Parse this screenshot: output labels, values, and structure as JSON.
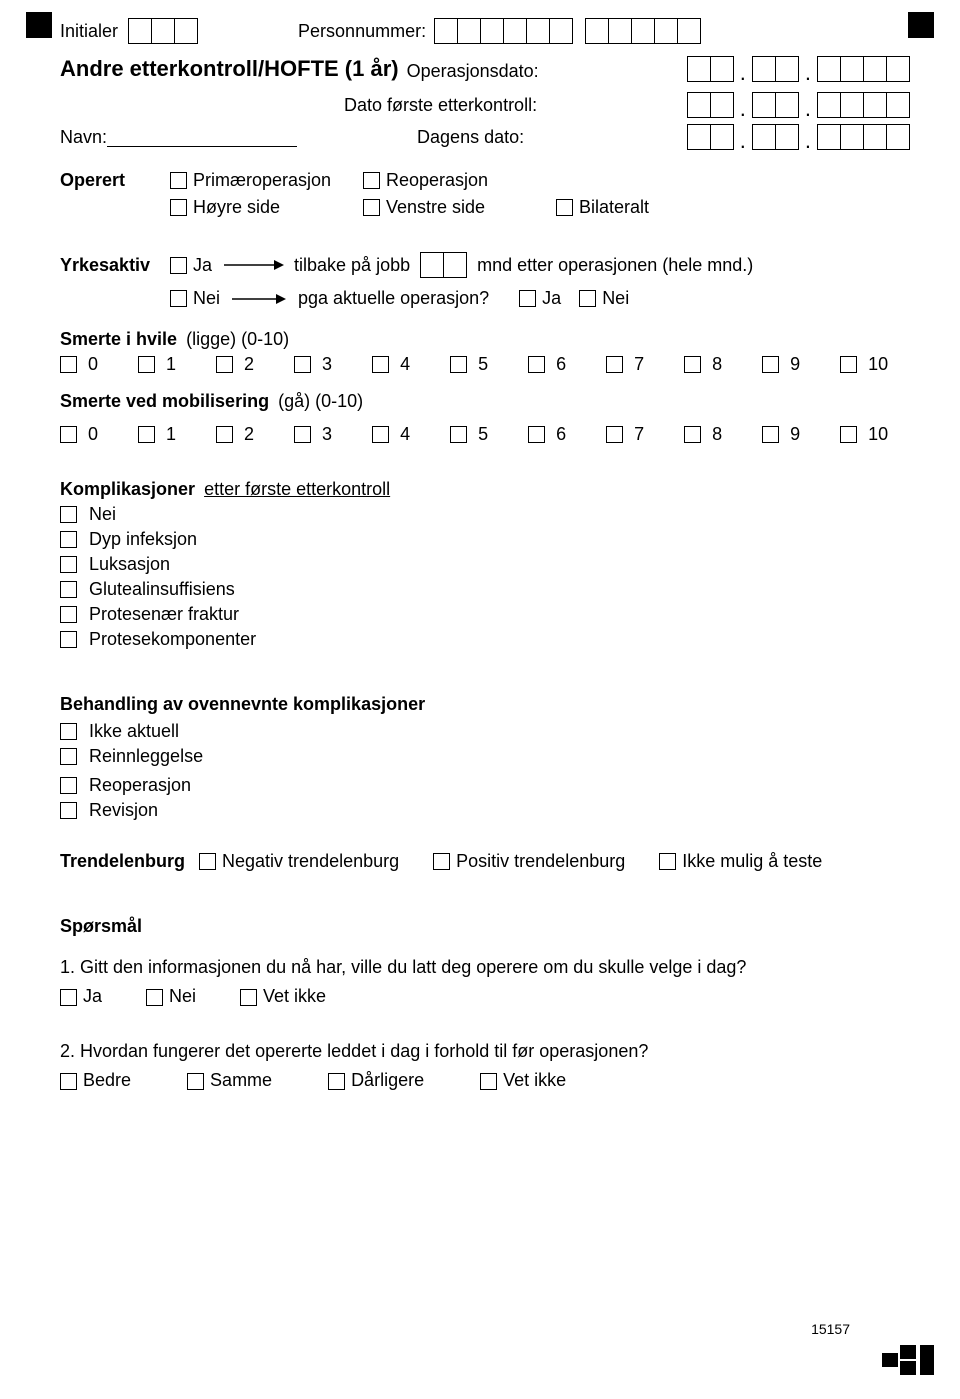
{
  "header": {
    "initialer": "Initialer",
    "personnummer": "Personnummer:",
    "title": "Andre etterkontroll/HOFTE (1 år)",
    "operasjonsdato": "Operasjonsdato:",
    "dato_forste": "Dato første etterkontroll:",
    "navn": "Navn:",
    "dagens_dato": "Dagens dato:"
  },
  "operert": {
    "label": "Operert",
    "primaeroperasjon": "Primæroperasjon",
    "reoperasjon": "Reoperasjon",
    "hoyre": "Høyre side",
    "venstre": "Venstre side",
    "bilateralt": "Bilateralt"
  },
  "yrkesaktiv": {
    "label": "Yrkesaktiv",
    "ja": "Ja",
    "nei": "Nei",
    "tilbake": "tilbake på jobb",
    "etter": "mnd etter operasjonen  (hele mnd.)",
    "pga": "pga aktuelle operasjon?",
    "ja2": "Ja",
    "nei2": "Nei"
  },
  "smerte_hvile": {
    "label": "Smerte i hvile",
    "sub": "(ligge) (0-10)"
  },
  "smerte_mobil": {
    "label": "Smerte ved mobilisering",
    "sub": "(gå) (0-10)"
  },
  "scale": [
    "0",
    "1",
    "2",
    "3",
    "4",
    "5",
    "6",
    "7",
    "8",
    "9",
    "10"
  ],
  "komplikasjoner": {
    "label": "Komplikasjoner",
    "sub": "etter første etterkontroll",
    "items": [
      "Nei",
      "Dyp infeksjon",
      "Luksasjon",
      "Glutealinsuffisiens",
      "Protesenær fraktur",
      "Protesekomponenter"
    ]
  },
  "behandling": {
    "label": "Behandling av ovennevnte komplikasjoner",
    "items": [
      "Ikke aktuell",
      "Reinnleggelse",
      "Reoperasjon",
      "Revisjon"
    ]
  },
  "trendelenburg": {
    "label": "Trendelenburg",
    "negativ": "Negativ trendelenburg",
    "positiv": "Positiv trendelenburg",
    "ikke": "Ikke mulig å teste"
  },
  "sporsmal": {
    "label": "Spørsmål",
    "q1": "1. Gitt den informasjonen du nå har, ville du latt deg operere om du skulle velge i dag?",
    "q1_opts": [
      "Ja",
      "Nei",
      "Vet ikke"
    ],
    "q2": "2. Hvordan fungerer det opererte leddet i dag i forhold til før operasjonen?",
    "q2_opts": [
      "Bedre",
      "Samme",
      "Dårligere",
      "Vet ikke"
    ]
  },
  "formid": "15157"
}
